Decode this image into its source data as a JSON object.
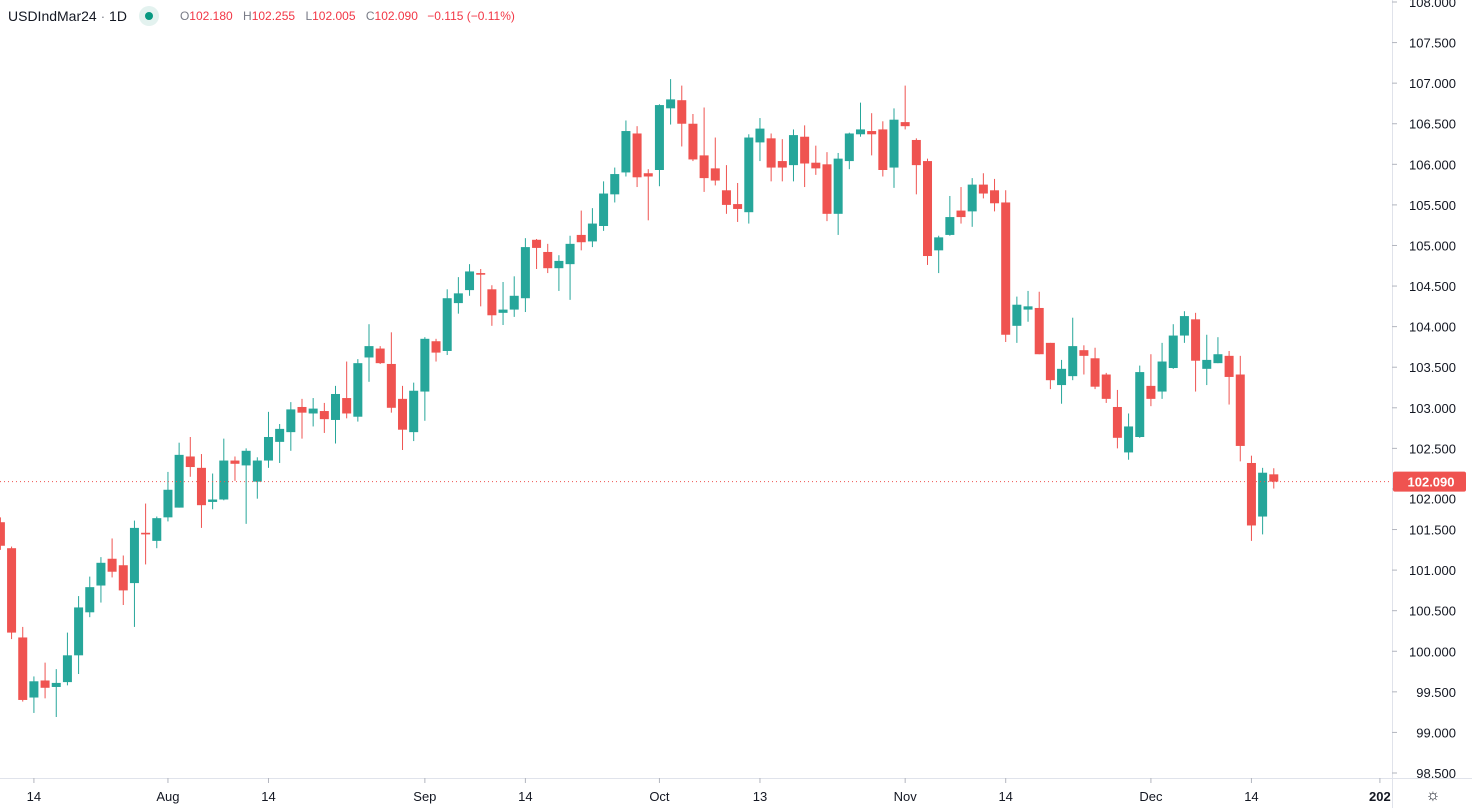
{
  "header": {
    "symbol": "USDIndMar24",
    "separator": "·",
    "interval": "1D",
    "open_label": "O",
    "open": "102.180",
    "high_label": "H",
    "high": "102.255",
    "low_label": "L",
    "low": "102.005",
    "close_label": "C",
    "close": "102.090",
    "change": "−0.115 (−0.11%)",
    "status_icon": "market-open-dot"
  },
  "settings_icon": "gear-icon",
  "colors": {
    "up": "#26a69a",
    "down": "#ef5350",
    "last_price": "#ef5350",
    "axis_text": "#131722",
    "grid": "#e0e3eb"
  },
  "chart_data": {
    "type": "candlestick",
    "ylim": [
      98.5,
      108
    ],
    "yticks": [
      "98.500",
      "99.000",
      "99.500",
      "100.000",
      "100.500",
      "101.000",
      "101.500",
      "102.000",
      "102.500",
      "103.000",
      "103.500",
      "104.000",
      "104.500",
      "105.000",
      "105.500",
      "106.000",
      "106.500",
      "107.000",
      "107.500",
      "108.000"
    ],
    "xticks": [
      {
        "label": "14",
        "bar": 3
      },
      {
        "label": "Aug",
        "bar": 15
      },
      {
        "label": "14",
        "bar": 24
      },
      {
        "label": "Sep",
        "bar": 38
      },
      {
        "label": "14",
        "bar": 47
      },
      {
        "label": "Oct",
        "bar": 59
      },
      {
        "label": "13",
        "bar": 68
      },
      {
        "label": "Nov",
        "bar": 81
      },
      {
        "label": "14",
        "bar": 90
      },
      {
        "label": "Dec",
        "bar": 103
      },
      {
        "label": "14",
        "bar": 112
      },
      {
        "label": "202",
        "bar": 123.5
      }
    ],
    "last_price": "102.090",
    "grid": false,
    "ohlc_fields": [
      "open",
      "high",
      "low",
      "close"
    ],
    "candles": [
      [
        101.59,
        101.65,
        101.25,
        101.3
      ],
      [
        101.27,
        101.29,
        100.15,
        100.23
      ],
      [
        100.17,
        100.3,
        99.38,
        99.4
      ],
      [
        99.43,
        99.69,
        99.24,
        99.63
      ],
      [
        99.64,
        99.86,
        99.42,
        99.55
      ],
      [
        99.56,
        99.78,
        99.19,
        99.61
      ],
      [
        99.62,
        100.23,
        99.58,
        99.95
      ],
      [
        99.95,
        100.68,
        99.72,
        100.54
      ],
      [
        100.48,
        100.92,
        100.42,
        100.79
      ],
      [
        100.81,
        101.16,
        100.6,
        101.09
      ],
      [
        101.14,
        101.39,
        100.91,
        100.98
      ],
      [
        101.06,
        101.18,
        100.57,
        100.75
      ],
      [
        100.84,
        101.61,
        100.3,
        101.52
      ],
      [
        101.46,
        101.82,
        101.07,
        101.44
      ],
      [
        101.36,
        101.66,
        101.27,
        101.64
      ],
      [
        101.65,
        102.21,
        101.6,
        101.99
      ],
      [
        101.77,
        102.57,
        101.77,
        102.42
      ],
      [
        102.4,
        102.64,
        102.15,
        102.27
      ],
      [
        102.26,
        102.43,
        101.52,
        101.8
      ],
      [
        101.84,
        102.19,
        101.75,
        101.87
      ],
      [
        101.87,
        102.62,
        101.86,
        102.35
      ],
      [
        102.35,
        102.4,
        102.1,
        102.31
      ],
      [
        102.29,
        102.5,
        101.57,
        102.47
      ],
      [
        102.09,
        102.39,
        101.88,
        102.35
      ],
      [
        102.35,
        102.95,
        102.26,
        102.64
      ],
      [
        102.58,
        102.8,
        102.32,
        102.74
      ],
      [
        102.7,
        103.07,
        102.47,
        102.98
      ],
      [
        103.01,
        103.11,
        102.62,
        102.94
      ],
      [
        102.93,
        103.12,
        102.77,
        102.99
      ],
      [
        102.96,
        103.06,
        102.69,
        102.86
      ],
      [
        102.85,
        103.27,
        102.56,
        103.17
      ],
      [
        103.12,
        103.57,
        102.87,
        102.93
      ],
      [
        102.89,
        103.6,
        102.83,
        103.55
      ],
      [
        103.62,
        104.03,
        103.32,
        103.76
      ],
      [
        103.73,
        103.76,
        103.54,
        103.55
      ],
      [
        103.54,
        103.93,
        102.94,
        103.0
      ],
      [
        103.11,
        103.27,
        102.48,
        102.73
      ],
      [
        102.7,
        103.31,
        102.59,
        103.21
      ],
      [
        103.2,
        103.87,
        102.84,
        103.85
      ],
      [
        103.82,
        103.85,
        103.57,
        103.68
      ],
      [
        103.7,
        104.46,
        103.65,
        104.35
      ],
      [
        104.29,
        104.61,
        104.16,
        104.41
      ],
      [
        104.45,
        104.77,
        104.38,
        104.68
      ],
      [
        104.66,
        104.71,
        104.25,
        104.64
      ],
      [
        104.46,
        104.51,
        104.01,
        104.14
      ],
      [
        104.17,
        104.55,
        104.02,
        104.21
      ],
      [
        104.21,
        104.62,
        104.12,
        104.38
      ],
      [
        104.35,
        105.09,
        104.18,
        104.98
      ],
      [
        105.07,
        105.08,
        104.71,
        104.97
      ],
      [
        104.92,
        105.02,
        104.66,
        104.72
      ],
      [
        104.72,
        104.88,
        104.44,
        104.81
      ],
      [
        104.77,
        105.12,
        104.33,
        105.02
      ],
      [
        105.13,
        105.43,
        104.94,
        105.04
      ],
      [
        105.05,
        105.46,
        104.98,
        105.27
      ],
      [
        105.24,
        105.79,
        105.18,
        105.64
      ],
      [
        105.63,
        105.96,
        105.53,
        105.88
      ],
      [
        105.9,
        106.54,
        105.85,
        106.41
      ],
      [
        106.38,
        106.47,
        105.72,
        105.84
      ],
      [
        105.89,
        105.94,
        105.31,
        105.85
      ],
      [
        105.93,
        106.74,
        105.73,
        106.73
      ],
      [
        106.69,
        107.05,
        106.49,
        106.8
      ],
      [
        106.79,
        106.97,
        106.22,
        106.5
      ],
      [
        106.5,
        106.62,
        106.04,
        106.06
      ],
      [
        106.11,
        106.7,
        105.66,
        105.83
      ],
      [
        105.95,
        106.33,
        105.74,
        105.8
      ],
      [
        105.68,
        105.99,
        105.39,
        105.5
      ],
      [
        105.51,
        105.77,
        105.29,
        105.45
      ],
      [
        105.41,
        106.37,
        105.27,
        106.33
      ],
      [
        106.27,
        106.57,
        106.04,
        106.44
      ],
      [
        106.32,
        106.38,
        105.79,
        105.96
      ],
      [
        106.04,
        106.31,
        105.79,
        105.96
      ],
      [
        105.99,
        106.43,
        105.79,
        106.36
      ],
      [
        106.34,
        106.48,
        105.72,
        106.01
      ],
      [
        106.02,
        106.23,
        105.87,
        105.95
      ],
      [
        106.0,
        106.15,
        105.3,
        105.39
      ],
      [
        105.39,
        106.14,
        105.13,
        106.07
      ],
      [
        106.04,
        106.39,
        105.94,
        106.38
      ],
      [
        106.37,
        106.76,
        106.34,
        106.43
      ],
      [
        106.41,
        106.63,
        106.11,
        106.37
      ],
      [
        106.43,
        106.53,
        105.85,
        105.93
      ],
      [
        105.96,
        106.69,
        105.71,
        106.55
      ],
      [
        106.52,
        106.97,
        106.43,
        106.47
      ],
      [
        106.3,
        106.32,
        105.63,
        105.99
      ],
      [
        106.04,
        106.07,
        104.76,
        104.87
      ],
      [
        104.94,
        105.12,
        104.66,
        105.1
      ],
      [
        105.13,
        105.61,
        105.12,
        105.35
      ],
      [
        105.43,
        105.72,
        105.27,
        105.35
      ],
      [
        105.42,
        105.83,
        105.23,
        105.75
      ],
      [
        105.75,
        105.89,
        105.58,
        105.64
      ],
      [
        105.68,
        105.82,
        105.42,
        105.52
      ],
      [
        105.53,
        105.68,
        103.81,
        103.9
      ],
      [
        104.01,
        104.37,
        103.8,
        104.27
      ],
      [
        104.21,
        104.44,
        104.06,
        104.25
      ],
      [
        104.23,
        104.43,
        103.66,
        103.66
      ],
      [
        103.8,
        103.8,
        103.23,
        103.34
      ],
      [
        103.28,
        103.59,
        103.05,
        103.48
      ],
      [
        103.39,
        104.11,
        103.34,
        103.76
      ],
      [
        103.71,
        103.77,
        103.41,
        103.64
      ],
      [
        103.61,
        103.74,
        103.23,
        103.26
      ],
      [
        103.41,
        103.43,
        103.06,
        103.11
      ],
      [
        103.01,
        103.22,
        102.5,
        102.63
      ],
      [
        102.45,
        102.93,
        102.36,
        102.77
      ],
      [
        102.64,
        103.52,
        102.63,
        103.44
      ],
      [
        103.27,
        103.66,
        103.02,
        103.11
      ],
      [
        103.2,
        103.8,
        103.11,
        103.57
      ],
      [
        103.49,
        104.03,
        103.48,
        103.89
      ],
      [
        103.89,
        104.19,
        103.8,
        104.13
      ],
      [
        104.09,
        104.17,
        103.2,
        103.58
      ],
      [
        103.48,
        103.9,
        103.28,
        103.59
      ],
      [
        103.55,
        103.87,
        103.55,
        103.66
      ],
      [
        103.64,
        103.7,
        103.04,
        103.38
      ],
      [
        103.41,
        103.64,
        102.34,
        102.53
      ],
      [
        102.32,
        102.41,
        101.36,
        101.55
      ],
      [
        101.66,
        102.26,
        101.44,
        102.2
      ],
      [
        102.18,
        102.255,
        102.005,
        102.09
      ]
    ]
  }
}
